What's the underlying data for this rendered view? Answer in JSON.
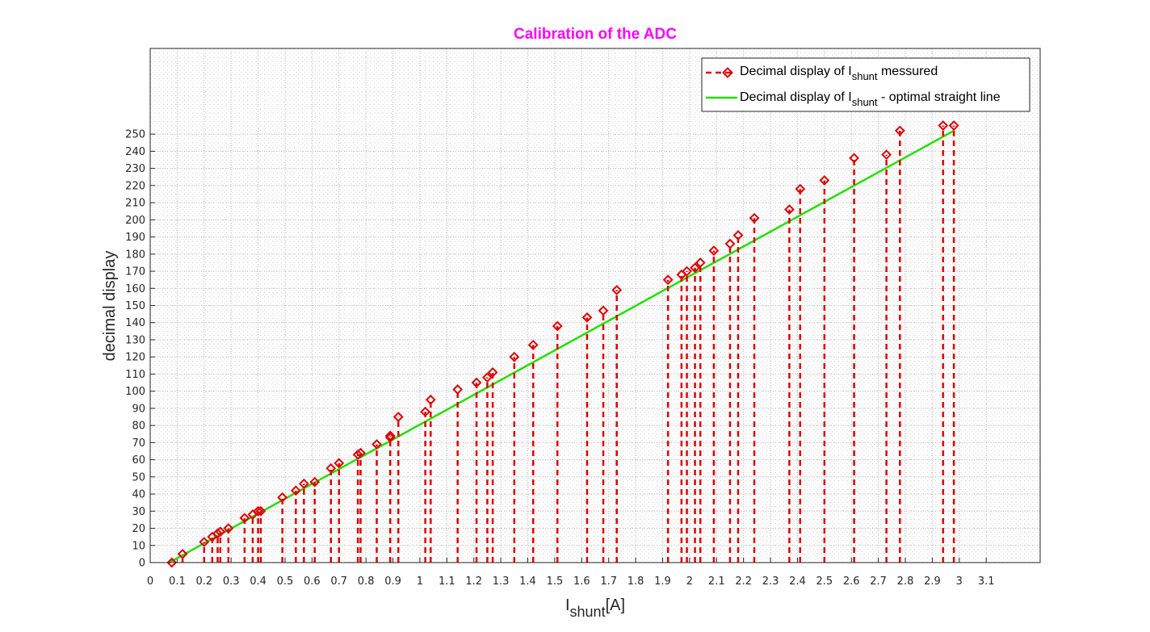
{
  "chart_data": {
    "type": "scatter",
    "title": "Calibration of the ADC",
    "title_color": "#ff00ff",
    "xlabel": {
      "main": "I",
      "sub": "shunt",
      "tail": "[A]"
    },
    "ylabel": "decimal display",
    "xlim": [
      0,
      3.3
    ],
    "ylim": [
      0,
      300
    ],
    "grid": "major-and-minor",
    "legend_position": "top-right",
    "x_ticks": [
      "0",
      "0.1",
      "0.2",
      "0.3",
      "0.4",
      "0.5",
      "0.6",
      "0.7",
      "0.8",
      "0.9",
      "1",
      "1.1",
      "1.2",
      "1.3",
      "1.4",
      "1.5",
      "1.6",
      "1.7",
      "1.8",
      "1.9",
      "2",
      "2.1",
      "2.2",
      "2.3",
      "2.4",
      "2.5",
      "2.6",
      "2.7",
      "2.8",
      "2.9",
      "3",
      "3.1"
    ],
    "y_ticks": [
      "0",
      "10",
      "20",
      "30",
      "40",
      "50",
      "60",
      "70",
      "80",
      "90",
      "100",
      "110",
      "120",
      "130",
      "140",
      "150",
      "160",
      "170",
      "180",
      "190",
      "200",
      "210",
      "220",
      "230",
      "240",
      "250"
    ],
    "series": [
      {
        "legend": {
          "pre": "Decimal display of I",
          "sub": "shunt",
          "post": " messured"
        },
        "color": "#e00000",
        "style": "dashed-stem-diamond",
        "x": [
          0.08,
          0.12,
          0.2,
          0.23,
          0.25,
          0.26,
          0.29,
          0.35,
          0.38,
          0.4,
          0.41,
          0.49,
          0.54,
          0.57,
          0.61,
          0.67,
          0.7,
          0.77,
          0.78,
          0.84,
          0.89,
          0.89,
          0.92,
          1.02,
          1.04,
          1.14,
          1.21,
          1.25,
          1.27,
          1.35,
          1.42,
          1.51,
          1.62,
          1.68,
          1.73,
          1.92,
          1.97,
          1.99,
          2.02,
          2.04,
          2.09,
          2.15,
          2.18,
          2.24,
          2.37,
          2.41,
          2.5,
          2.61,
          2.73,
          2.78,
          2.94,
          2.98
        ],
        "y": [
          0,
          5,
          12,
          15,
          17,
          18,
          20,
          26,
          28,
          30,
          30,
          38,
          42,
          46,
          47,
          55,
          58,
          63,
          64,
          69,
          73,
          74,
          85,
          88,
          95,
          101,
          105,
          108,
          111,
          120,
          127,
          138,
          143,
          147,
          159,
          165,
          168,
          170,
          172,
          175,
          182,
          186,
          191,
          201,
          206,
          218,
          223,
          236,
          238,
          252,
          255,
          255
        ]
      },
      {
        "legend": {
          "pre": "Decimal display of I",
          "sub": "shunt",
          "post": " - optimal straight line"
        },
        "color": "#22e000",
        "style": "solid",
        "x": [
          0.07,
          2.98
        ],
        "y": [
          0,
          252
        ]
      }
    ]
  }
}
